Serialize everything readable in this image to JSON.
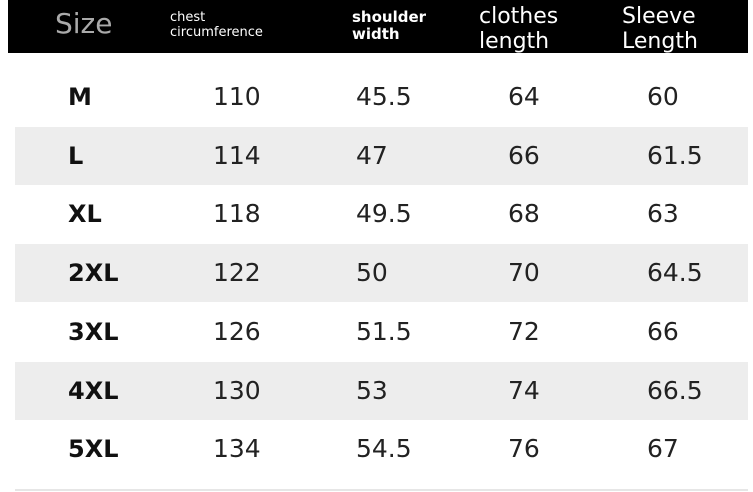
{
  "table": {
    "header": [
      [
        "Size"
      ],
      [
        "chest",
        "circumference"
      ],
      [
        "shoulder",
        "width"
      ],
      [
        "clothes",
        "length"
      ],
      [
        "Sleeve",
        "Length"
      ]
    ],
    "rows": [
      [
        "M",
        "110",
        "45.5",
        "64",
        "60"
      ],
      [
        "L",
        "114",
        "47",
        "66",
        "61.5"
      ],
      [
        "XL",
        "118",
        "49.5",
        "68",
        "63"
      ],
      [
        "2XL",
        "122",
        "50",
        "70",
        "64.5"
      ],
      [
        "3XL",
        "126",
        "51.5",
        "72",
        "66"
      ],
      [
        "4XL",
        "130",
        "53",
        "74",
        "66.5"
      ],
      [
        "5XL",
        "134",
        "54.5",
        "76",
        "67"
      ]
    ]
  }
}
